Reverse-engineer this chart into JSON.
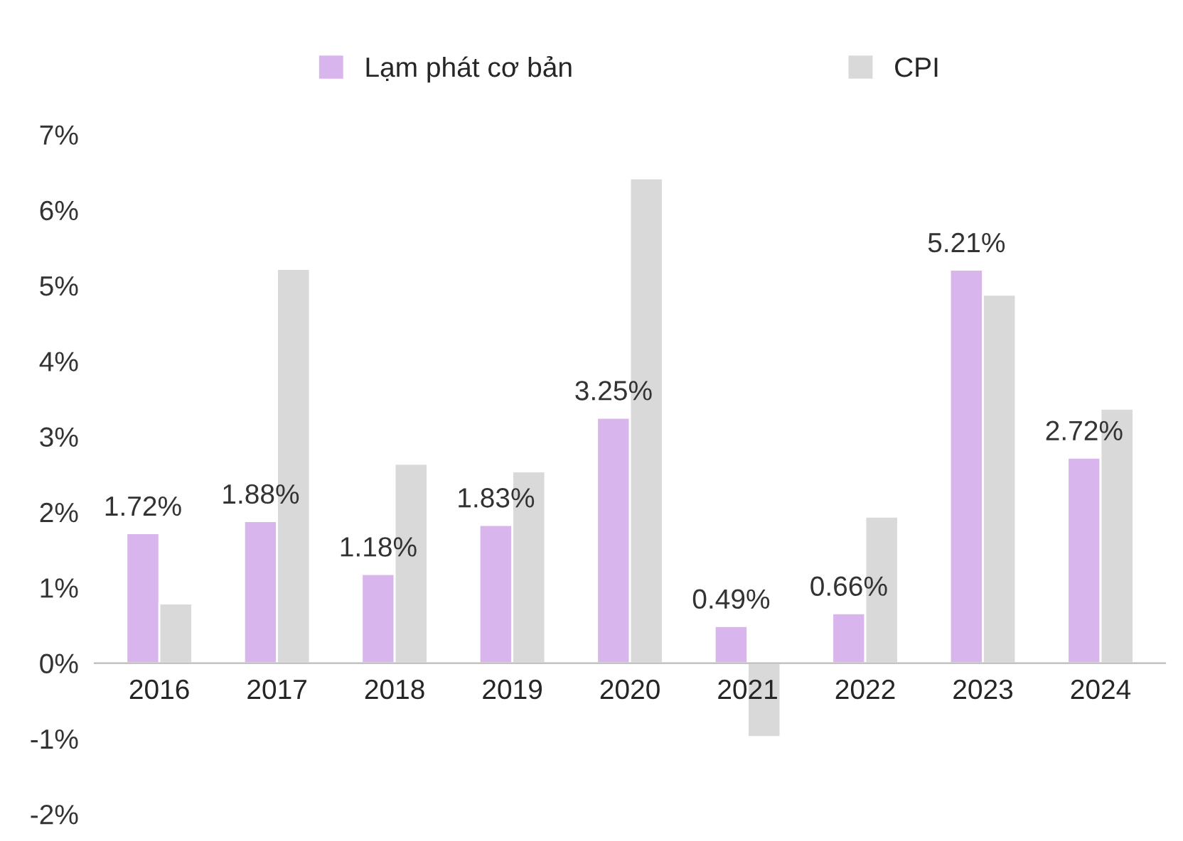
{
  "chart_data": {
    "type": "bar",
    "categories": [
      "2016",
      "2017",
      "2018",
      "2019",
      "2020",
      "2021",
      "2022",
      "2023",
      "2024"
    ],
    "series": [
      {
        "name": "Lạm phát cơ bản",
        "color": "#d9b5ee",
        "values": [
          1.72,
          1.88,
          1.18,
          1.83,
          3.25,
          0.49,
          0.66,
          5.21,
          2.72
        ],
        "value_labels": [
          "1.72%",
          "1.88%",
          "1.18%",
          "1.83%",
          "3.25%",
          "0.49%",
          "0.66%",
          "5.21%",
          "2.72%"
        ]
      },
      {
        "name": "CPI",
        "color": "#d9d9d9",
        "values": [
          0.79,
          5.22,
          2.64,
          2.54,
          6.42,
          -0.98,
          1.94,
          4.88,
          3.37
        ]
      }
    ],
    "ylim": [
      -2,
      7
    ],
    "yticks": [
      {
        "value": -2,
        "label": "-2%"
      },
      {
        "value": -1,
        "label": "-1%"
      },
      {
        "value": 0,
        "label": "0%"
      },
      {
        "value": 1,
        "label": "1%"
      },
      {
        "value": 2,
        "label": "2%"
      },
      {
        "value": 3,
        "label": "3%"
      },
      {
        "value": 4,
        "label": "4%"
      },
      {
        "value": 5,
        "label": "5%"
      },
      {
        "value": 6,
        "label": "6%"
      },
      {
        "value": 7,
        "label": "7%"
      }
    ],
    "grid": false,
    "legend": "top"
  }
}
